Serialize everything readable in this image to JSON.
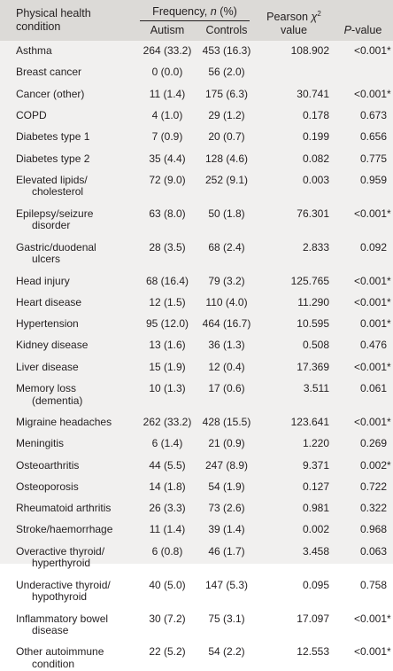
{
  "header": {
    "col_condition": [
      "Physical health",
      "condition"
    ],
    "col_frequency": "Frequency, n (%)",
    "col_autism": "Autism",
    "col_controls": "Controls",
    "col_chi": [
      "Pearson χ²",
      "value"
    ],
    "col_p": "P-value"
  },
  "rows": [
    {
      "condition": [
        "Asthma"
      ],
      "autism": "264 (33.2)",
      "controls": "453 (16.3)",
      "chi": "108.902",
      "p": "<0.001",
      "star": "*"
    },
    {
      "condition": [
        "Breast cancer"
      ],
      "autism": "0 (0.0)",
      "controls": "56 (2.0)",
      "chi": "",
      "p": "",
      "star": ""
    },
    {
      "condition": [
        "Cancer (other)"
      ],
      "autism": "11 (1.4)",
      "controls": "175 (6.3)",
      "chi": "30.741",
      "p": "<0.001",
      "star": "*"
    },
    {
      "condition": [
        "COPD"
      ],
      "autism": "4 (1.0)",
      "controls": "29 (1.2)",
      "chi": "0.178",
      "p": "0.673",
      "star": ""
    },
    {
      "condition": [
        "Diabetes type 1"
      ],
      "autism": "7 (0.9)",
      "controls": "20 (0.7)",
      "chi": "0.199",
      "p": "0.656",
      "star": ""
    },
    {
      "condition": [
        "Diabetes type 2"
      ],
      "autism": "35 (4.4)",
      "controls": "128 (4.6)",
      "chi": "0.082",
      "p": "0.775",
      "star": ""
    },
    {
      "condition": [
        "Elevated lipids/",
        "cholesterol"
      ],
      "autism": "72 (9.0)",
      "controls": "252 (9.1)",
      "chi": "0.003",
      "p": "0.959",
      "star": ""
    },
    {
      "condition": [
        "Epilepsy/seizure",
        "disorder"
      ],
      "autism": "63 (8.0)",
      "controls": "50 (1.8)",
      "chi": "76.301",
      "p": "<0.001",
      "star": "*"
    },
    {
      "condition": [
        "Gastric/duodenal",
        "ulcers"
      ],
      "autism": "28 (3.5)",
      "controls": "68 (2.4)",
      "chi": "2.833",
      "p": "0.092",
      "star": ""
    },
    {
      "condition": [
        "Head injury"
      ],
      "autism": "68 (16.4)",
      "controls": "79 (3.2)",
      "chi": "125.765",
      "p": "<0.001",
      "star": "*"
    },
    {
      "condition": [
        "Heart disease"
      ],
      "autism": "12 (1.5)",
      "controls": "110 (4.0)",
      "chi": "11.290",
      "p": "<0.001",
      "star": "*"
    },
    {
      "condition": [
        "Hypertension"
      ],
      "autism": "95 (12.0)",
      "controls": "464 (16.7)",
      "chi": "10.595",
      "p": "0.001",
      "star": "*"
    },
    {
      "condition": [
        "Kidney disease"
      ],
      "autism": "13 (1.6)",
      "controls": "36 (1.3)",
      "chi": "0.508",
      "p": "0.476",
      "star": ""
    },
    {
      "condition": [
        "Liver disease"
      ],
      "autism": "15 (1.9)",
      "controls": "12 (0.4)",
      "chi": "17.369",
      "p": "<0.001",
      "star": "*"
    },
    {
      "condition": [
        "Memory loss",
        "(dementia)"
      ],
      "autism": "10 (1.3)",
      "controls": "17 (0.6)",
      "chi": "3.511",
      "p": "0.061",
      "star": ""
    },
    {
      "condition": [
        "Migraine headaches"
      ],
      "autism": "262 (33.2)",
      "controls": "428 (15.5)",
      "chi": "123.641",
      "p": "<0.001",
      "star": "*"
    },
    {
      "condition": [
        "Meningitis"
      ],
      "autism": "6 (1.4)",
      "controls": "21 (0.9)",
      "chi": "1.220",
      "p": "0.269",
      "star": ""
    },
    {
      "condition": [
        "Osteoarthritis"
      ],
      "autism": "44 (5.5)",
      "controls": "247 (8.9)",
      "chi": "9.371",
      "p": "0.002",
      "star": "*"
    },
    {
      "condition": [
        "Osteoporosis"
      ],
      "autism": "14 (1.8)",
      "controls": "54 (1.9)",
      "chi": "0.127",
      "p": "0.722",
      "star": ""
    },
    {
      "condition": [
        "Rheumatoid arthritis"
      ],
      "autism": "26 (3.3)",
      "controls": "73 (2.6)",
      "chi": "0.981",
      "p": "0.322",
      "star": ""
    },
    {
      "condition": [
        "Stroke/haemorrhage"
      ],
      "autism": "11 (1.4)",
      "controls": "39 (1.4)",
      "chi": "0.002",
      "p": "0.968",
      "star": ""
    },
    {
      "condition": [
        "Overactive thyroid/",
        "hyperthyroid"
      ],
      "autism": "6 (0.8)",
      "controls": "46 (1.7)",
      "chi": "3.458",
      "p": "0.063",
      "star": ""
    },
    {
      "condition": [
        "Underactive thyroid/",
        "hypothyroid"
      ],
      "autism": "40 (5.0)",
      "controls": "147 (5.3)",
      "chi": "0.095",
      "p": "0.758",
      "star": ""
    },
    {
      "condition": [
        "Inflammatory bowel",
        "disease"
      ],
      "autism": "30 (7.2)",
      "controls": "75 (3.1)",
      "chi": "17.097",
      "p": "<0.001",
      "star": "*"
    },
    {
      "condition": [
        "Other autoimmune",
        "condition"
      ],
      "autism": "22 (5.2)",
      "controls": "54 (2.2)",
      "chi": "12.553",
      "p": "<0.001",
      "star": "*"
    }
  ]
}
